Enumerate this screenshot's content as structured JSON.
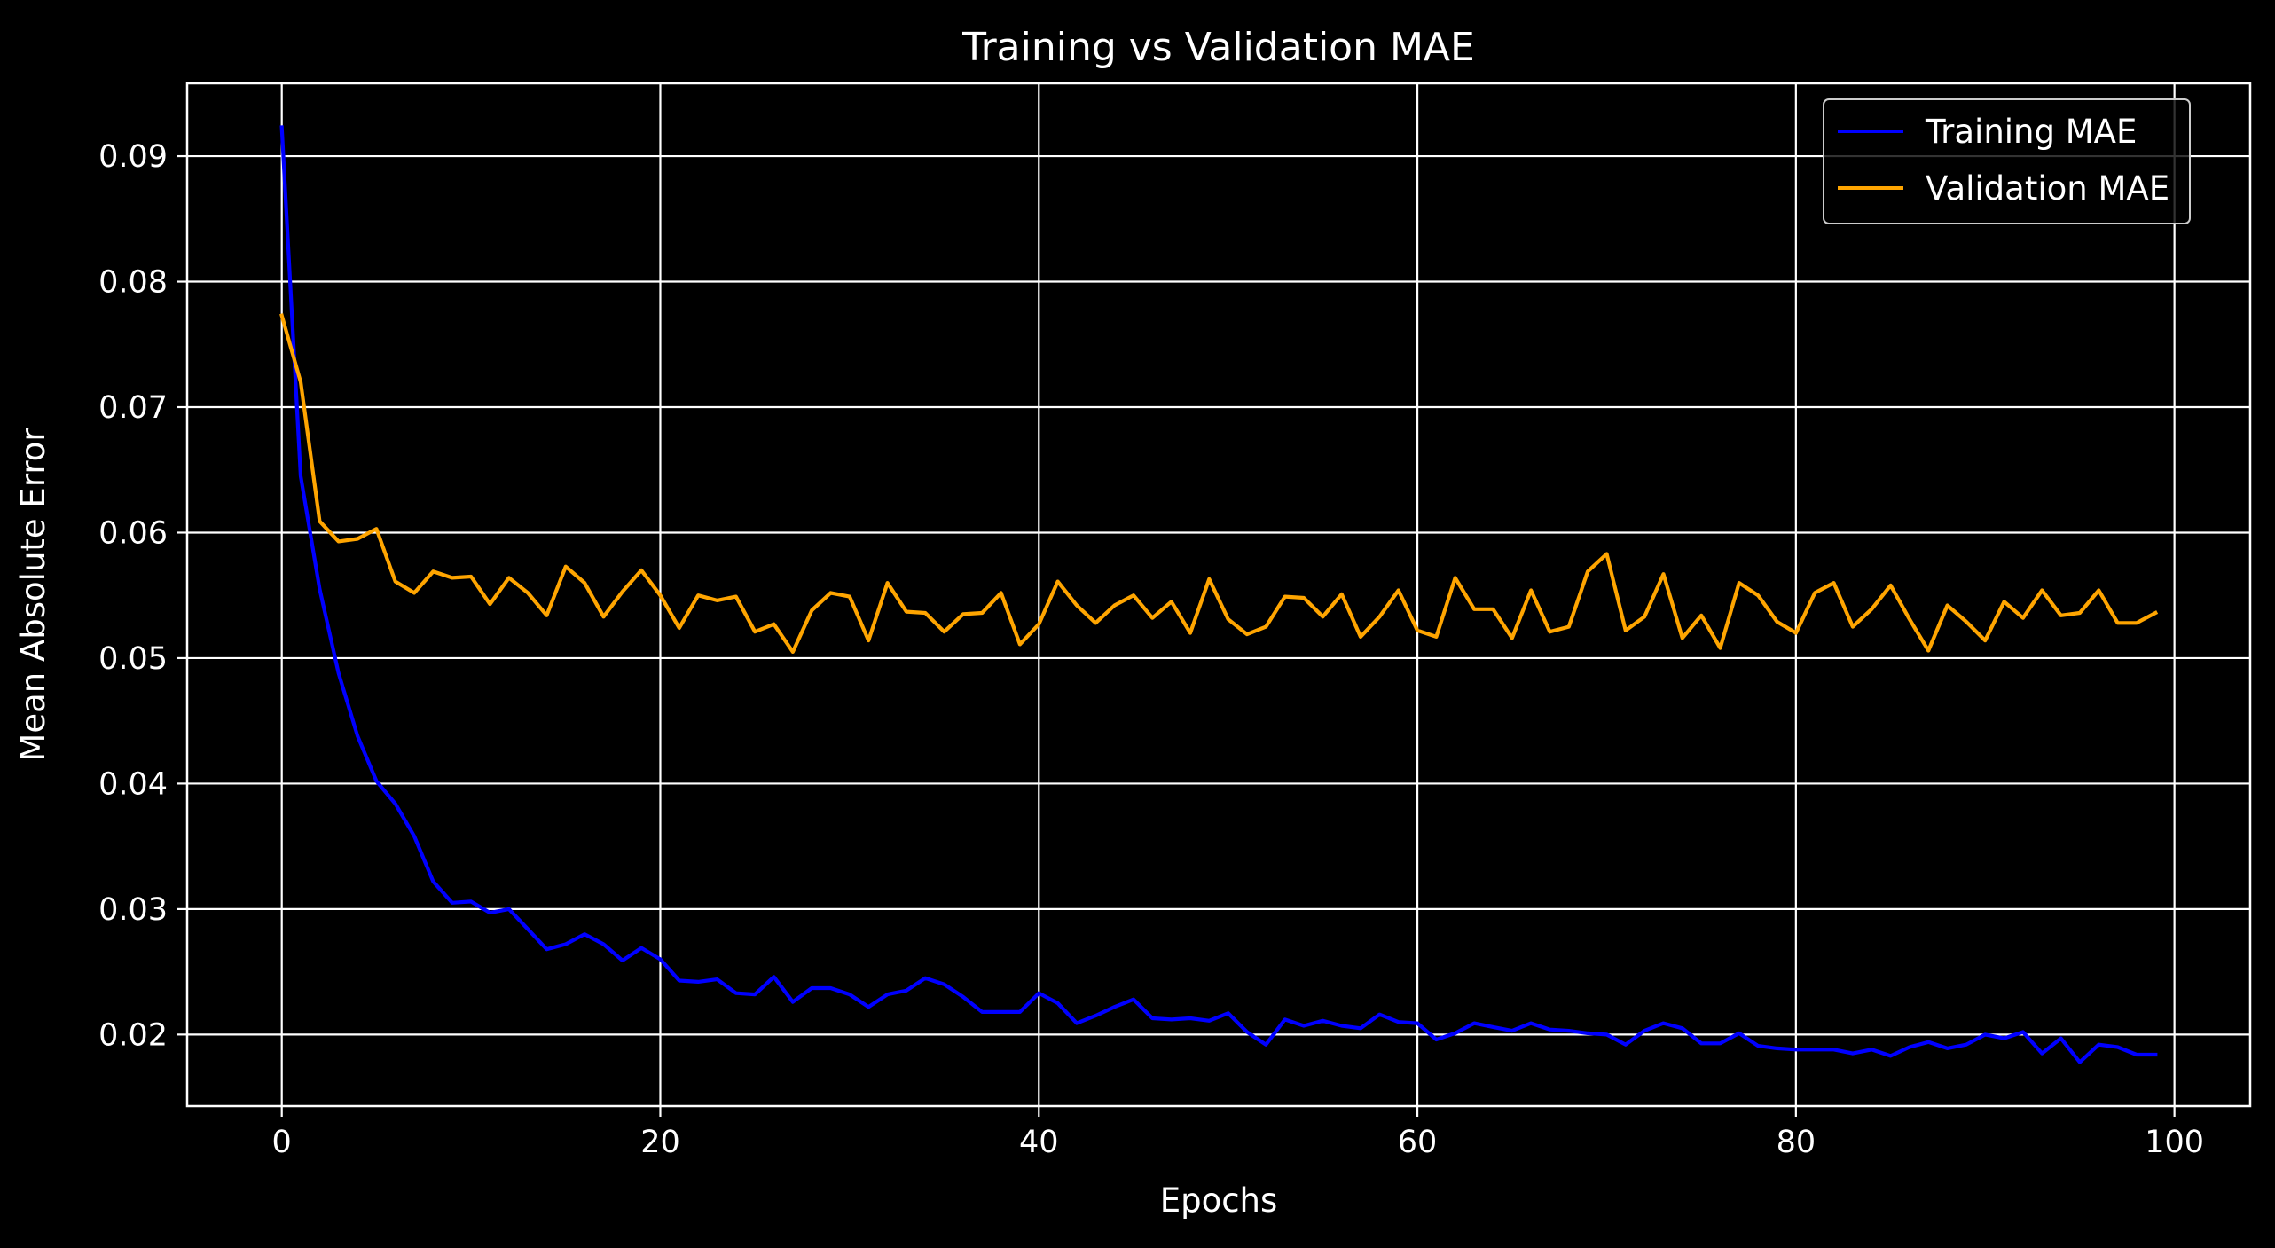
{
  "chart_data": {
    "type": "line",
    "title": "Training vs Validation MAE",
    "xlabel": "Epochs",
    "ylabel": "Mean Absolute Error",
    "xlim": [
      -5,
      104
    ],
    "ylim": [
      0.0143,
      0.0958
    ],
    "x_ticks": [
      0,
      20,
      40,
      60,
      80,
      100
    ],
    "y_ticks": [
      0.02,
      0.03,
      0.04,
      0.05,
      0.06,
      0.07,
      0.08,
      0.09
    ],
    "x_tick_labels": [
      "0",
      "20",
      "40",
      "60",
      "80",
      "100"
    ],
    "y_tick_labels": [
      "0.02",
      "0.03",
      "0.04",
      "0.05",
      "0.06",
      "0.07",
      "0.08",
      "0.09"
    ],
    "grid": true,
    "legend_position": "top-right",
    "background": "#000000",
    "foreground": "#ffffff",
    "series": [
      {
        "name": "Training MAE",
        "color": "#0000ff",
        "x": [
          0,
          1,
          2,
          3,
          4,
          5,
          6,
          7,
          8,
          9,
          10,
          11,
          12,
          13,
          14,
          15,
          16,
          17,
          18,
          19,
          20,
          21,
          22,
          23,
          24,
          25,
          26,
          27,
          28,
          29,
          30,
          31,
          32,
          33,
          34,
          35,
          36,
          37,
          38,
          39,
          40,
          41,
          42,
          43,
          44,
          45,
          46,
          47,
          48,
          49,
          50,
          51,
          52,
          53,
          54,
          55,
          56,
          57,
          58,
          59,
          60,
          61,
          62,
          63,
          64,
          65,
          66,
          67,
          68,
          69,
          70,
          71,
          72,
          73,
          74,
          75,
          76,
          77,
          78,
          79,
          80,
          81,
          82,
          83,
          84,
          85,
          86,
          87,
          88,
          89,
          90,
          91,
          92,
          93,
          94,
          95,
          96,
          97,
          98,
          99
        ],
        "values": [
          0.0923,
          0.0645,
          0.0555,
          0.0488,
          0.0438,
          0.0402,
          0.0384,
          0.0358,
          0.0322,
          0.0305,
          0.0306,
          0.0297,
          0.03,
          0.0284,
          0.0268,
          0.0272,
          0.028,
          0.0272,
          0.0259,
          0.0269,
          0.026,
          0.0243,
          0.0242,
          0.0244,
          0.0233,
          0.0232,
          0.0246,
          0.0226,
          0.0237,
          0.0237,
          0.0232,
          0.0222,
          0.0232,
          0.0235,
          0.0245,
          0.024,
          0.023,
          0.0218,
          0.0218,
          0.0218,
          0.0233,
          0.0225,
          0.0209,
          0.0215,
          0.0222,
          0.0228,
          0.0213,
          0.0212,
          0.0213,
          0.0211,
          0.0217,
          0.0202,
          0.0192,
          0.0212,
          0.0207,
          0.0211,
          0.0207,
          0.0205,
          0.0216,
          0.021,
          0.0209,
          0.0196,
          0.0201,
          0.0209,
          0.0206,
          0.0203,
          0.0209,
          0.0204,
          0.0203,
          0.0201,
          0.02,
          0.0192,
          0.0203,
          0.0209,
          0.0205,
          0.0193,
          0.0193,
          0.0201,
          0.0191,
          0.0189,
          0.0188,
          0.0188,
          0.0188,
          0.0185,
          0.0188,
          0.0183,
          0.019,
          0.0194,
          0.0189,
          0.0192,
          0.02,
          0.0197,
          0.0202,
          0.0185,
          0.0197,
          0.0178,
          0.0192,
          0.019,
          0.0184,
          0.0184
        ]
      },
      {
        "name": "Validation MAE",
        "color": "#ffa500",
        "x": [
          0,
          1,
          2,
          3,
          4,
          5,
          6,
          7,
          8,
          9,
          10,
          11,
          12,
          13,
          14,
          15,
          16,
          17,
          18,
          19,
          20,
          21,
          22,
          23,
          24,
          25,
          26,
          27,
          28,
          29,
          30,
          31,
          32,
          33,
          34,
          35,
          36,
          37,
          38,
          39,
          40,
          41,
          42,
          43,
          44,
          45,
          46,
          47,
          48,
          49,
          50,
          51,
          52,
          53,
          54,
          55,
          56,
          57,
          58,
          59,
          60,
          61,
          62,
          63,
          64,
          65,
          66,
          67,
          68,
          69,
          70,
          71,
          72,
          73,
          74,
          75,
          76,
          77,
          78,
          79,
          80,
          81,
          82,
          83,
          84,
          85,
          86,
          87,
          88,
          89,
          90,
          91,
          92,
          93,
          94,
          95,
          96,
          97,
          98,
          99
        ],
        "values": [
          0.0773,
          0.072,
          0.0609,
          0.0593,
          0.0595,
          0.0603,
          0.0561,
          0.0552,
          0.0569,
          0.0564,
          0.0565,
          0.0543,
          0.0564,
          0.0552,
          0.0534,
          0.0573,
          0.056,
          0.0533,
          0.0553,
          0.057,
          0.055,
          0.0524,
          0.055,
          0.0546,
          0.0549,
          0.0521,
          0.0527,
          0.0505,
          0.0538,
          0.0552,
          0.0549,
          0.0514,
          0.056,
          0.0537,
          0.0536,
          0.0521,
          0.0535,
          0.0536,
          0.0552,
          0.0511,
          0.0527,
          0.0561,
          0.0542,
          0.0528,
          0.0542,
          0.055,
          0.0532,
          0.0545,
          0.052,
          0.0563,
          0.0531,
          0.0519,
          0.0525,
          0.0549,
          0.0548,
          0.0533,
          0.0551,
          0.0517,
          0.0533,
          0.0554,
          0.0522,
          0.0517,
          0.0564,
          0.0539,
          0.0539,
          0.0516,
          0.0554,
          0.0521,
          0.0525,
          0.0569,
          0.0583,
          0.0522,
          0.0533,
          0.0567,
          0.0516,
          0.0534,
          0.0508,
          0.056,
          0.055,
          0.0529,
          0.052,
          0.0552,
          0.056,
          0.0525,
          0.0539,
          0.0558,
          0.0531,
          0.0506,
          0.0542,
          0.0529,
          0.0514,
          0.0545,
          0.0532,
          0.0554,
          0.0534,
          0.0536,
          0.0554,
          0.0528,
          0.0528,
          0.0536
        ]
      }
    ]
  }
}
